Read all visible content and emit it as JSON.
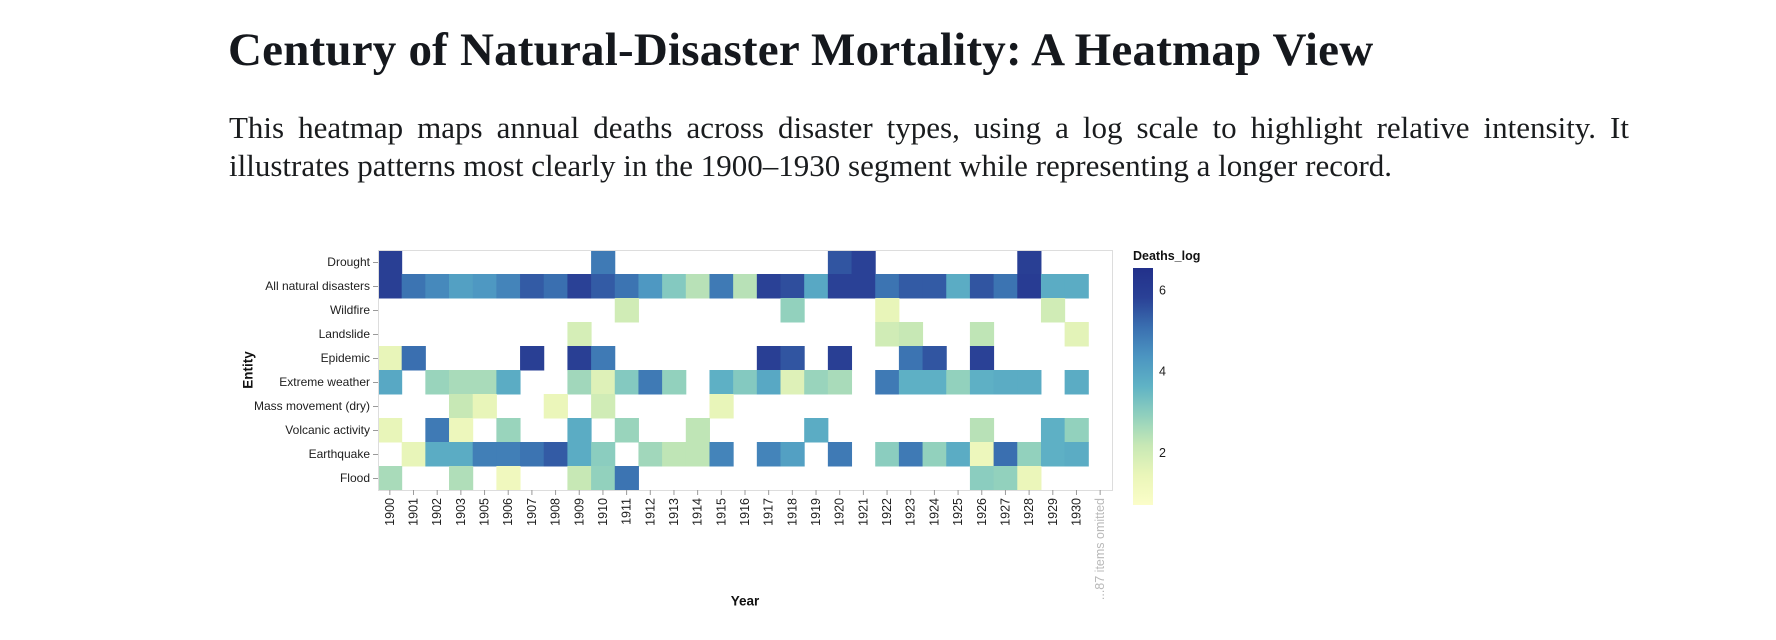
{
  "header": {
    "title": "Century of Natural-Disaster Mortality: A Heatmap View",
    "description_lines": [
      "This heatmap maps annual deaths across disaster types, using a log scale to highlight relative intensity. It",
      "illustrates patterns most clearly in the 1900–1930 segment while representing a longer record."
    ]
  },
  "chart_data": {
    "type": "heatmap",
    "xlabel": "Year",
    "ylabel": "Entity",
    "legend_title": "Deaths_log",
    "x_labels": [
      "1900",
      "1901",
      "1902",
      "1903",
      "1905",
      "1906",
      "1907",
      "1908",
      "1909",
      "1910",
      "1911",
      "1912",
      "1913",
      "1914",
      "1915",
      "1916",
      "1917",
      "1918",
      "1919",
      "1920",
      "1921",
      "1922",
      "1923",
      "1924",
      "1925",
      "1926",
      "1927",
      "1928",
      "1929",
      "1930"
    ],
    "x_overflow_label": "...87 items omitted",
    "y_labels": [
      "Drought",
      "All natural disasters",
      "Wildfire",
      "Landslide",
      "Epidemic",
      "Extreme weather",
      "Mass movement (dry)",
      "Volcanic activity",
      "Earthquake",
      "Flood"
    ],
    "scale": {
      "domain": [
        0.72,
        6.55
      ],
      "legend_ticks": [
        2,
        4,
        6
      ],
      "scheme": "yellowgreenblue",
      "colormap_stops": [
        [
          0.7,
          "#fbfdc9"
        ],
        [
          1.45,
          "#eaf6b9"
        ],
        [
          2.2,
          "#c7e8b5"
        ],
        [
          2.95,
          "#8ecfbe"
        ],
        [
          3.65,
          "#5fb2c5"
        ],
        [
          4.4,
          "#4b94c1"
        ],
        [
          5.1,
          "#3a6fb0"
        ],
        [
          5.8,
          "#2a4196"
        ],
        [
          6.55,
          "#22308a"
        ]
      ]
    },
    "values_log10_deaths": {
      "Drought": {
        "1900": 5.9,
        "1910": 4.9,
        "1920": 5.5,
        "1921": 5.8,
        "1928": 5.9
      },
      "All natural disasters": {
        "1900": 5.9,
        "1901": 5.0,
        "1902": 4.6,
        "1903": 4.1,
        "1905": 4.3,
        "1906": 4.7,
        "1907": 5.4,
        "1908": 5.1,
        "1909": 5.8,
        "1910": 5.4,
        "1911": 5.0,
        "1912": 4.3,
        "1913": 3.1,
        "1914": 2.4,
        "1915": 4.9,
        "1916": 2.4,
        "1917": 5.8,
        "1918": 5.6,
        "1919": 3.9,
        "1920": 5.8,
        "1921": 5.8,
        "1922": 5.0,
        "1923": 5.4,
        "1924": 5.4,
        "1925": 3.8,
        "1926": 5.5,
        "1927": 5.0,
        "1928": 6.0,
        "1929": 3.8,
        "1930": 3.8
      },
      "Wildfire": {
        "1911": 2.0,
        "1918": 2.9,
        "1922": 1.5,
        "1929": 2.0
      },
      "Landslide": {
        "1909": 1.9,
        "1922": 2.0,
        "1923": 2.2,
        "1926": 2.3,
        "1930": 1.6
      },
      "Epidemic": {
        "1900": 1.5,
        "1901": 5.1,
        "1907": 5.9,
        "1909": 5.9,
        "1910": 4.9,
        "1917": 5.9,
        "1918": 5.5,
        "1920": 5.9,
        "1923": 5.0,
        "1924": 5.5,
        "1926": 5.8
      },
      "Extreme weather": {
        "1900": 3.9,
        "1902": 2.8,
        "1903": 2.6,
        "1905": 2.6,
        "1906": 3.8,
        "1909": 2.7,
        "1910": 1.7,
        "1911": 3.1,
        "1912": 4.9,
        "1913": 2.9,
        "1915": 3.7,
        "1916": 3.1,
        "1917": 3.9,
        "1918": 1.7,
        "1919": 2.8,
        "1920": 2.6,
        "1922": 4.9,
        "1923": 3.7,
        "1924": 3.7,
        "1925": 2.9,
        "1926": 3.7,
        "1927": 3.8,
        "1928": 3.8,
        "1930": 3.8
      },
      "Mass movement (dry)": {
        "1903": 2.2,
        "1905": 1.5,
        "1908": 1.4,
        "1910": 2.0,
        "1915": 1.5
      },
      "Volcanic activity": {
        "1900": 1.5,
        "1902": 4.9,
        "1903": 1.3,
        "1906": 2.8,
        "1909": 3.8,
        "1911": 2.8,
        "1914": 2.3,
        "1919": 3.8,
        "1926": 2.4,
        "1929": 3.7,
        "1930": 2.9
      },
      "Earthquake": {
        "1901": 1.5,
        "1902": 3.8,
        "1903": 3.8,
        "1905": 4.8,
        "1906": 4.8,
        "1907": 5.0,
        "1908": 5.4,
        "1909": 3.8,
        "1910": 3.0,
        "1912": 2.7,
        "1913": 2.3,
        "1914": 2.3,
        "1915": 4.7,
        "1917": 4.7,
        "1918": 4.1,
        "1920": 4.9,
        "1922": 3.0,
        "1923": 4.9,
        "1924": 2.9,
        "1925": 3.8,
        "1926": 1.3,
        "1927": 5.1,
        "1928": 2.9,
        "1929": 3.7,
        "1930": 3.8
      },
      "Flood": {
        "1900": 2.6,
        "1903": 2.5,
        "1906": 1.2,
        "1909": 2.2,
        "1910": 2.9,
        "1911": 5.0,
        "1926": 3.0,
        "1927": 2.9,
        "1928": 1.4
      }
    }
  }
}
